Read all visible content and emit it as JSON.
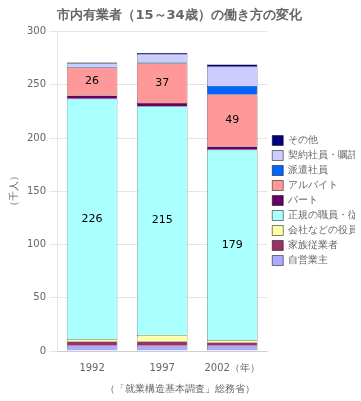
{
  "chart_data": {
    "type": "bar",
    "stacked": true,
    "title": "市内有業者（15～34歳）の働き方の変化",
    "ylabel": "（千人）",
    "annotations": [
      "（「就業構造基本調査」総務省）"
    ],
    "categories": [
      "1992",
      "1997",
      "2002（年）"
    ],
    "series": [
      {
        "name": "自営業主",
        "color": "#aaaaff",
        "values": [
          5,
          5,
          5
        ]
      },
      {
        "name": "家族従業者",
        "color": "#993366",
        "values": [
          4,
          4,
          3
        ]
      },
      {
        "name": "会社などの役員",
        "color": "#ffffaa",
        "values": [
          2,
          6,
          2
        ]
      },
      {
        "name": "正規の職員・従業員",
        "color": "#aaffff",
        "values": [
          226,
          215,
          179
        ],
        "data_labels": true
      },
      {
        "name": "パート",
        "color": "#660066",
        "values": [
          3,
          3,
          3
        ]
      },
      {
        "name": "アルバイト",
        "color": "#ff9999",
        "values": [
          26,
          37,
          49
        ],
        "data_labels": true
      },
      {
        "name": "派遣社員",
        "color": "#0066ff",
        "values": [
          1,
          1,
          8
        ]
      },
      {
        "name": "契約社員・嘱託",
        "color": "#ccccff",
        "values": [
          3,
          8,
          18
        ]
      },
      {
        "name": "その他",
        "color": "#000080",
        "values": [
          1,
          1,
          2
        ]
      }
    ],
    "ylim": [
      0,
      300
    ],
    "yticks": [
      0,
      50,
      100,
      150,
      200,
      250,
      300
    ],
    "grid": true,
    "legend": "right"
  }
}
